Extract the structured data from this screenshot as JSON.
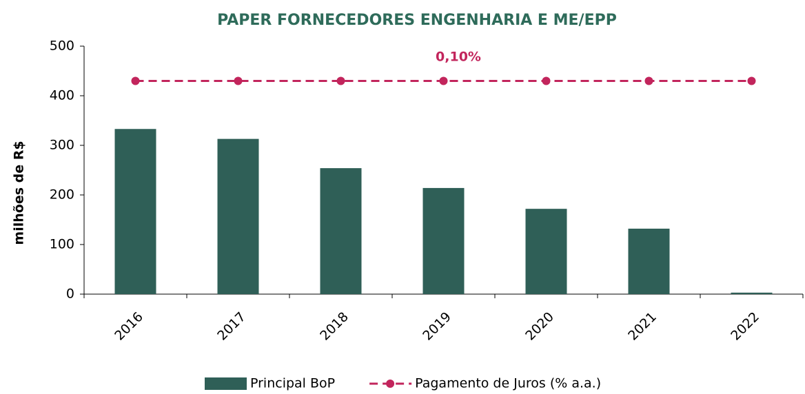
{
  "chart_data": {
    "type": "bar",
    "title": "PAPER FORNECEDORES ENGENHARIA E ME/EPP",
    "ylabel": "milhões de R$",
    "annotation": "0,10%",
    "categories": [
      "2016",
      "2017",
      "2018",
      "2019",
      "2020",
      "2021",
      "2022"
    ],
    "series": [
      {
        "name": "Principal BoP",
        "type": "bar",
        "color": "#2f5f57",
        "values": [
          333,
          313,
          254,
          214,
          172,
          132,
          3
        ]
      },
      {
        "name": "Pagamento de Juros (% a.a.)",
        "type": "line",
        "axis": "y2",
        "color": "#c2255c",
        "values": [
          0.1,
          0.1,
          0.1,
          0.1,
          0.1,
          0.1,
          0.1
        ]
      }
    ],
    "ylim": [
      0,
      500
    ],
    "yticks": [
      0,
      100,
      200,
      300,
      400,
      500
    ],
    "y2lim": [
      0,
      0.1163
    ],
    "legend": "bottom"
  }
}
